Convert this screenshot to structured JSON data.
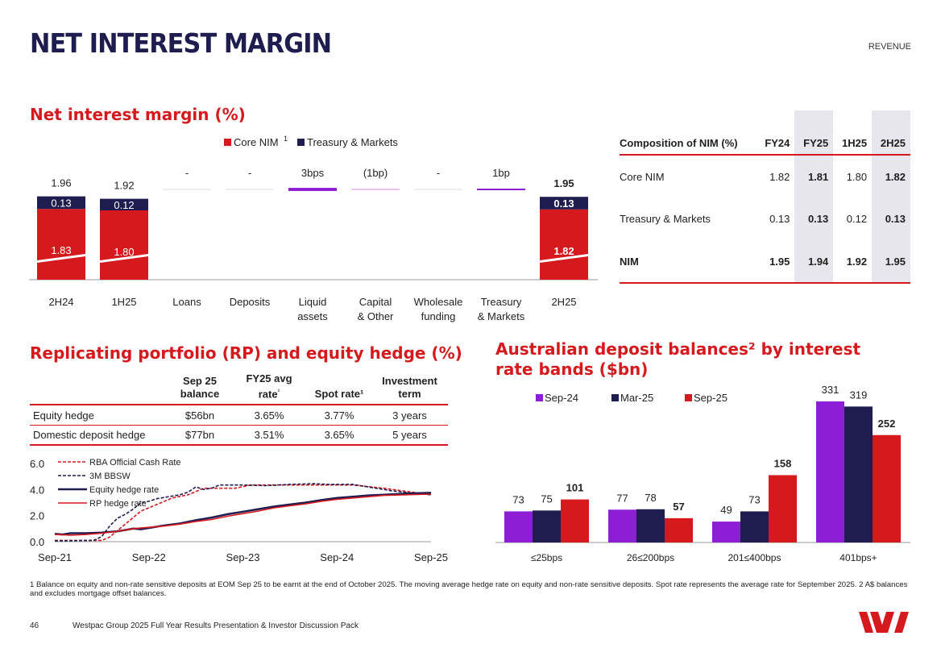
{
  "header": {
    "title": "NET INTEREST MARGIN",
    "section": "REVENUE"
  },
  "nim_section_title": "Net interest margin (%)",
  "rp_section_title": "Replicating portfolio (RP) and equity hedge (%)",
  "deposit_section_title": "Australian deposit balances² by interest rate bands ($bn)",
  "colors": {
    "red": "#d5191d",
    "navy": "#1f1c4f",
    "purple": "#8e1ed6"
  },
  "composition_table": {
    "headers": [
      "Composition of NIM (%)",
      "FY24",
      "FY25",
      "1H25",
      "2H25"
    ],
    "rows": [
      {
        "label": "Core NIM",
        "values": [
          "1.82",
          "1.81",
          "1.80",
          "1.82"
        ]
      },
      {
        "label": "Treasury & Markets",
        "values": [
          "0.13",
          "0.13",
          "0.12",
          "0.13"
        ]
      },
      {
        "label": "NIM",
        "values": [
          "1.95",
          "1.94",
          "1.92",
          "1.95"
        ]
      }
    ]
  },
  "rp_table": {
    "headers": [
      "",
      "Sep 25 balance",
      "FY25 avg rate¹",
      "Spot rate¹",
      "Investment term"
    ],
    "rows": [
      {
        "label": "Equity hedge",
        "values": [
          "$56bn",
          "3.65%",
          "3.77%",
          "3 years"
        ]
      },
      {
        "label": "Domestic deposit hedge",
        "values": [
          "$77bn",
          "3.51%",
          "3.65%",
          "5 years"
        ]
      }
    ]
  },
  "chart_data": [
    {
      "type": "bar",
      "subtype": "waterfall",
      "title": "Net interest margin (%)",
      "legend": [
        "Core NIM¹",
        "Treasury & Markets"
      ],
      "categories": [
        "2H24",
        "1H25",
        "Loans",
        "Deposits",
        "Liquid assets",
        "Capital & Other",
        "Wholesale funding",
        "Treasury & Markets",
        "2H25"
      ],
      "category_lines": [
        [
          "2H24"
        ],
        [
          "1H25"
        ],
        [
          "Loans"
        ],
        [
          "Deposits"
        ],
        [
          "Liquid",
          "assets"
        ],
        [
          "Capital",
          "& Other"
        ],
        [
          "Wholesale",
          "funding"
        ],
        [
          "Treasury",
          "& Markets"
        ],
        [
          "2H25"
        ]
      ],
      "totals": [
        {
          "category": "2H24",
          "core": 1.83,
          "treasury": 0.13,
          "total": "1.96"
        },
        {
          "category": "1H25",
          "core": 1.8,
          "treasury": 0.12,
          "total": "1.92"
        },
        {
          "category": "2H25",
          "core": 1.82,
          "treasury": 0.13,
          "total": "1.95"
        }
      ],
      "movements": [
        {
          "category": "Loans",
          "label": "-",
          "bps": 0
        },
        {
          "category": "Deposits",
          "label": "-",
          "bps": 0
        },
        {
          "category": "Liquid assets",
          "label": "3bps",
          "bps": 3
        },
        {
          "category": "Capital & Other",
          "label": "(1bp)",
          "bps": -1
        },
        {
          "category": "Wholesale funding",
          "label": "-",
          "bps": 0
        },
        {
          "category": "Treasury & Markets",
          "label": "1bp",
          "bps": 1
        }
      ],
      "axis_break": true
    },
    {
      "type": "line",
      "title": "Replicating portfolio (RP) and equity hedge (%)",
      "x_ticks": [
        "Sep-21",
        "Sep-22",
        "Sep-23",
        "Sep-24",
        "Sep-25"
      ],
      "y_ticks": [
        "6.0",
        "4.0",
        "2.0",
        "0.0"
      ],
      "ylim": [
        0,
        6
      ],
      "xlim": [
        0,
        48
      ],
      "series": [
        {
          "name": "RBA Official Cash Rate",
          "style": "dashed",
          "color": "#d5191d",
          "points": [
            [
              0,
              0.1
            ],
            [
              6,
              0.1
            ],
            [
              7,
              0.35
            ],
            [
              8,
              0.85
            ],
            [
              9,
              1.35
            ],
            [
              10,
              1.85
            ],
            [
              11,
              2.35
            ],
            [
              12,
              2.6
            ],
            [
              13,
              2.85
            ],
            [
              14,
              3.1
            ],
            [
              15,
              3.35
            ],
            [
              17,
              3.6
            ],
            [
              18,
              3.85
            ],
            [
              19,
              4.1
            ],
            [
              23,
              4.1
            ],
            [
              25,
              4.35
            ],
            [
              32,
              4.35
            ],
            [
              38,
              4.35
            ],
            [
              42,
              4.1
            ],
            [
              45,
              3.85
            ],
            [
              48,
              3.6
            ]
          ]
        },
        {
          "name": "3M BBSW",
          "style": "dashed",
          "color": "#1f1c4f",
          "points": [
            [
              0,
              0.05
            ],
            [
              5,
              0.1
            ],
            [
              6,
              0.4
            ],
            [
              7,
              1.2
            ],
            [
              8,
              1.8
            ],
            [
              9,
              2.1
            ],
            [
              10,
              2.5
            ],
            [
              11,
              3.0
            ],
            [
              12,
              3.1
            ],
            [
              13,
              3.3
            ],
            [
              15,
              3.5
            ],
            [
              16,
              3.6
            ],
            [
              17,
              3.8
            ],
            [
              18,
              4.2
            ],
            [
              19,
              4.0
            ],
            [
              20,
              4.1
            ],
            [
              21,
              4.35
            ],
            [
              24,
              4.35
            ],
            [
              27,
              4.3
            ],
            [
              30,
              4.4
            ],
            [
              33,
              4.45
            ],
            [
              35,
              4.4
            ],
            [
              38,
              4.4
            ],
            [
              41,
              4.1
            ],
            [
              43,
              3.9
            ],
            [
              46,
              3.7
            ],
            [
              48,
              3.6
            ]
          ]
        },
        {
          "name": "Equity hedge rate",
          "style": "solid",
          "color": "#1f1c4f",
          "points": [
            [
              0,
              0.6
            ],
            [
              1,
              0.55
            ],
            [
              2,
              0.65
            ],
            [
              4,
              0.65
            ],
            [
              6,
              0.7
            ],
            [
              8,
              0.8
            ],
            [
              9,
              0.9
            ],
            [
              10,
              1.0
            ],
            [
              11,
              0.95
            ],
            [
              12,
              1.05
            ],
            [
              14,
              1.25
            ],
            [
              16,
              1.4
            ],
            [
              18,
              1.65
            ],
            [
              20,
              1.85
            ],
            [
              22,
              2.1
            ],
            [
              24,
              2.3
            ],
            [
              26,
              2.5
            ],
            [
              28,
              2.7
            ],
            [
              30,
              2.85
            ],
            [
              32,
              3.0
            ],
            [
              34,
              3.2
            ],
            [
              36,
              3.35
            ],
            [
              38,
              3.45
            ],
            [
              40,
              3.55
            ],
            [
              42,
              3.6
            ],
            [
              45,
              3.7
            ],
            [
              48,
              3.75
            ]
          ]
        },
        {
          "name": "RP hedge rate",
          "style": "solid",
          "color": "#d5191d",
          "points": [
            [
              0,
              0.55
            ],
            [
              2,
              0.5
            ],
            [
              4,
              0.55
            ],
            [
              6,
              0.65
            ],
            [
              8,
              0.8
            ],
            [
              10,
              1.0
            ],
            [
              12,
              1.1
            ],
            [
              14,
              1.2
            ],
            [
              16,
              1.35
            ],
            [
              18,
              1.55
            ],
            [
              20,
              1.7
            ],
            [
              22,
              1.95
            ],
            [
              24,
              2.15
            ],
            [
              26,
              2.35
            ],
            [
              28,
              2.6
            ],
            [
              30,
              2.75
            ],
            [
              32,
              2.9
            ],
            [
              34,
              3.1
            ],
            [
              36,
              3.25
            ],
            [
              38,
              3.35
            ],
            [
              40,
              3.45
            ],
            [
              42,
              3.55
            ],
            [
              45,
              3.6
            ],
            [
              48,
              3.65
            ]
          ]
        }
      ]
    },
    {
      "type": "bar",
      "title": "Australian deposit balances by interest rate bands ($bn)",
      "categories": [
        "≤25bps",
        "26≤200bps",
        "201≤400bps",
        "401bps+"
      ],
      "series": [
        {
          "name": "Sep-24",
          "color": "#8e1ed6",
          "values": [
            73,
            77,
            49,
            331
          ]
        },
        {
          "name": "Mar-25",
          "color": "#1f1c4f",
          "values": [
            75,
            78,
            73,
            319
          ]
        },
        {
          "name": "Sep-25",
          "color": "#d5191d",
          "values": [
            101,
            57,
            158,
            252
          ]
        }
      ],
      "ylim": [
        0,
        340
      ]
    }
  ],
  "footnote": "1 Balance on equity and non-rate sensitive deposits at EOM Sep 25 to be earnt at the end of October 2025. The moving average hedge rate on equity and non-rate sensitive deposits. Spot rate represents the average rate for September 2025. 2 A$ balances and excludes mortgage offset balances.",
  "footer": {
    "page": "46",
    "text": "Westpac Group 2025 Full Year Results Presentation & Investor Discussion Pack"
  },
  "logo": {
    "name": "westpac-logo"
  }
}
